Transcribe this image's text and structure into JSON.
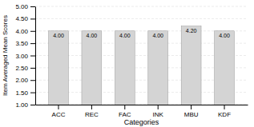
{
  "chart_data": {
    "type": "bar",
    "categories": [
      "ACC",
      "REC",
      "FAC",
      "INK",
      "MBU",
      "KDF"
    ],
    "values": [
      4.0,
      4.0,
      4.0,
      4.0,
      4.2,
      4.0
    ],
    "value_labels": [
      "4.00",
      "4.00",
      "4.00",
      "4.00",
      "4.20",
      "4.00"
    ],
    "color": "#d4d4d4",
    "xlabel": "Categories",
    "ylabel": "Item Averaged Mean Scores",
    "ylim": [
      1.0,
      5.0
    ],
    "yticks": [
      {
        "value": 1.0,
        "label": "1.00"
      },
      {
        "value": 1.5,
        "label": "1.50"
      },
      {
        "value": 2.0,
        "label": "2.00"
      },
      {
        "value": 2.5,
        "label": "2.50"
      },
      {
        "value": 3.0,
        "label": "3.00"
      },
      {
        "value": 3.5,
        "label": "3.50"
      },
      {
        "value": 4.0,
        "label": "4.00"
      },
      {
        "value": 4.5,
        "label": "4.50"
      },
      {
        "value": 5.0,
        "label": "5.00"
      }
    ],
    "grid": true,
    "data_labels": true
  }
}
